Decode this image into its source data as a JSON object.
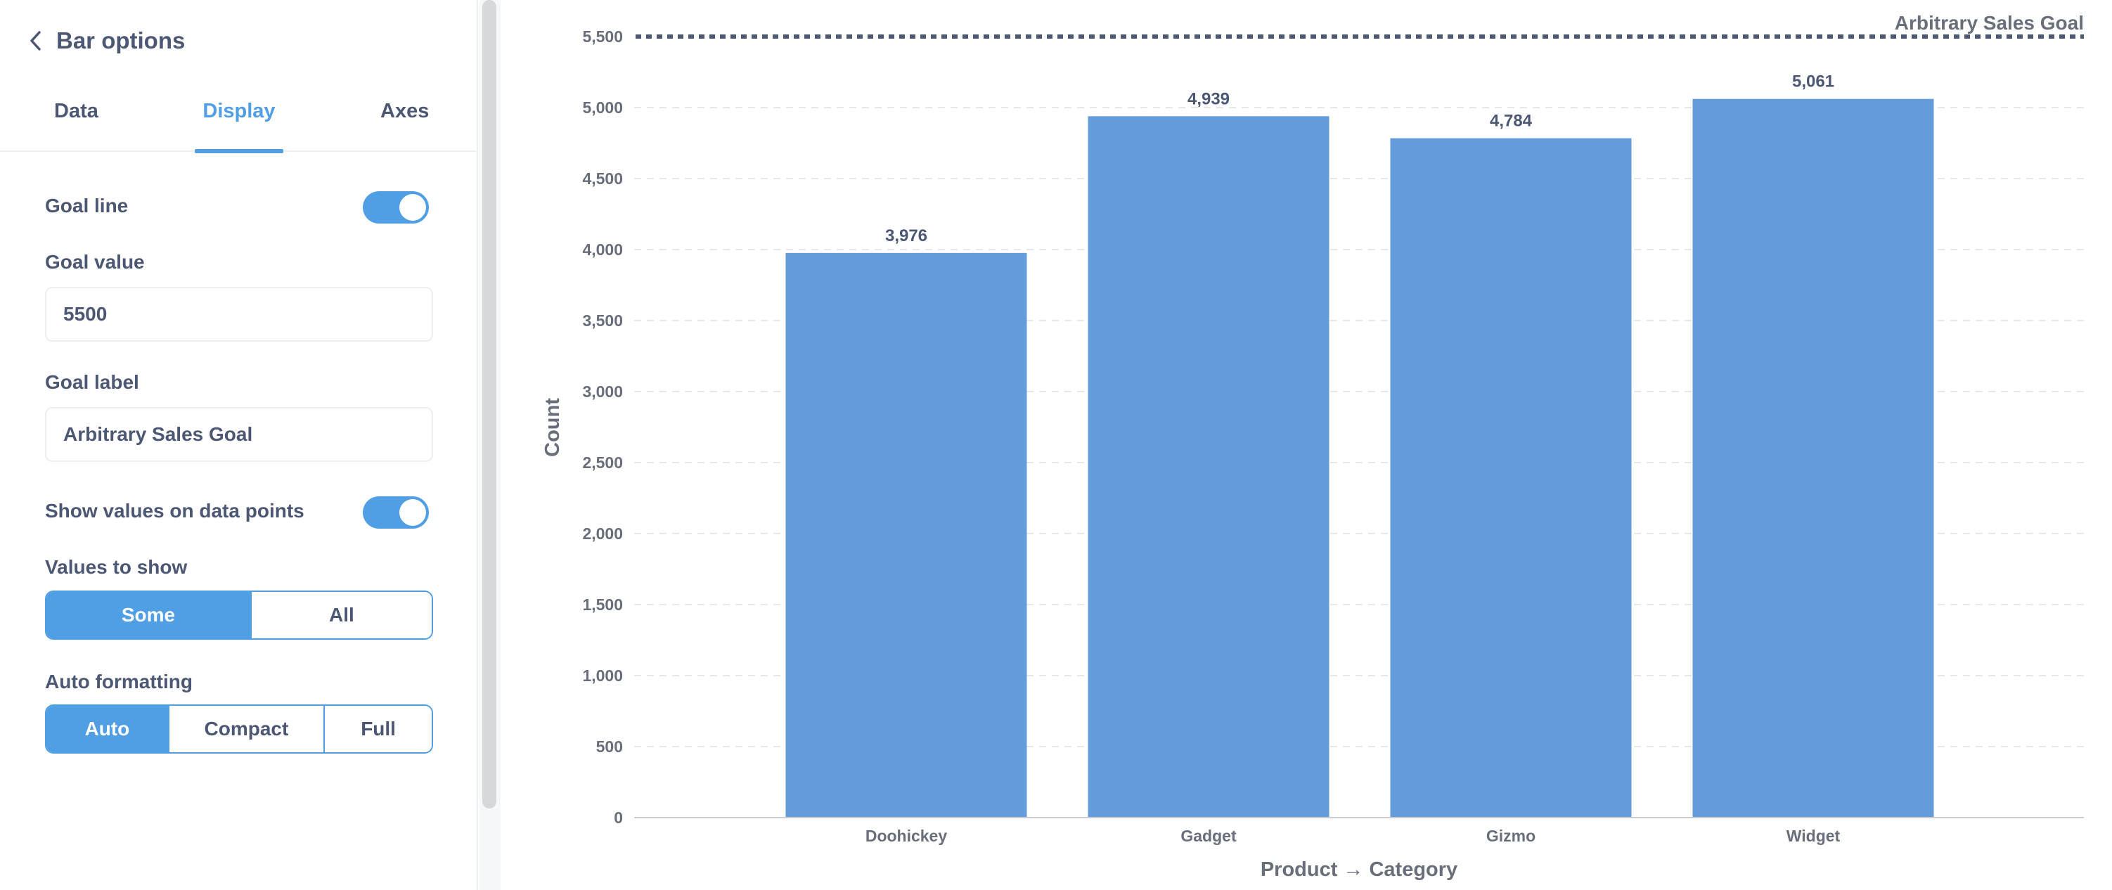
{
  "sidebar": {
    "title": "Bar options",
    "tabs": [
      {
        "label": "Data"
      },
      {
        "label": "Display"
      },
      {
        "label": "Axes"
      }
    ],
    "active_tab": "Display",
    "goal_line": {
      "label": "Goal line",
      "enabled": true
    },
    "goal_value": {
      "label": "Goal value",
      "value": "5500"
    },
    "goal_label": {
      "label": "Goal label",
      "value": "Arbitrary Sales Goal"
    },
    "show_values": {
      "label": "Show values on data points",
      "enabled": true
    },
    "values_to_show": {
      "label": "Values to show",
      "options": [
        "Some",
        "All"
      ],
      "selected": "Some"
    },
    "auto_formatting": {
      "label": "Auto formatting",
      "options": [
        "Auto",
        "Compact",
        "Full"
      ],
      "selected": "Auto"
    }
  },
  "colors": {
    "accent": "#509ee3",
    "bar": "#649CDB",
    "grid": "#e6e8ea",
    "goal_line": "#4c5773",
    "text": "#4c5773",
    "axis_text": "#696e7b"
  },
  "icons": {
    "back": "chevron-left-icon"
  },
  "chart_data": {
    "type": "bar",
    "categories": [
      "Doohickey",
      "Gadget",
      "Gizmo",
      "Widget"
    ],
    "values": [
      3976,
      4939,
      4784,
      5061
    ],
    "value_labels": [
      "3,976",
      "4,939",
      "4,784",
      "5,061"
    ],
    "xlabel": "Product → Category",
    "ylabel": "Count",
    "ylim": [
      0,
      5500
    ],
    "yticks": [
      0,
      500,
      1000,
      1500,
      2000,
      2500,
      3000,
      3500,
      4000,
      4500,
      5000,
      5500
    ],
    "ytick_labels": [
      "0",
      "500",
      "1,000",
      "1,500",
      "2,000",
      "2,500",
      "3,000",
      "3,500",
      "4,000",
      "4,500",
      "5,000",
      "5,500"
    ],
    "goal": {
      "value": 5500,
      "label": "Arbitrary Sales Goal"
    },
    "grid": true,
    "legend": "none"
  }
}
